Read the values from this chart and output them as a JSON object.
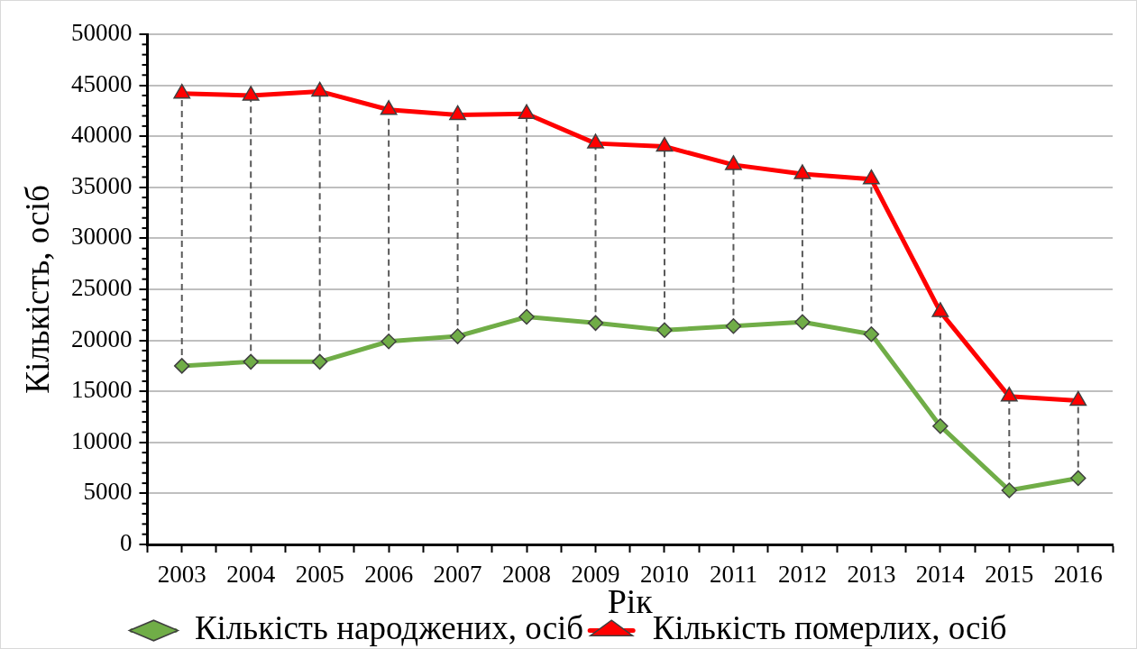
{
  "chart_data": {
    "type": "line",
    "xlabel": "Рік",
    "ylabel": "Кількість, осіб",
    "x": [
      2003,
      2004,
      2005,
      2006,
      2007,
      2008,
      2009,
      2010,
      2011,
      2012,
      2013,
      2014,
      2015,
      2016
    ],
    "series": [
      {
        "name": "Кількість народжених, осіб",
        "color": "#70ad47",
        "marker": "diamond",
        "line_style": "solid",
        "values": [
          17500,
          17900,
          17900,
          19900,
          20400,
          22300,
          21700,
          21000,
          21400,
          21800,
          20600,
          11600,
          5300,
          6500
        ]
      },
      {
        "name": "Кількість померлих, осіб",
        "color": "#ff0000",
        "marker": "triangle",
        "line_style": "solid",
        "values": [
          44200,
          44000,
          44400,
          42600,
          42100,
          42200,
          39300,
          39000,
          37200,
          36300,
          35800,
          22800,
          14500,
          14100
        ]
      },
      {
        "type": "line",
        "color": "#595959",
        "marker": "none",
        "line_style": "dashed",
        "x": [
          2003,
          2003,
          null,
          2004,
          2004,
          null,
          2005,
          2005,
          null,
          2006,
          2006,
          null,
          2007,
          2007,
          null,
          2008,
          2008,
          null,
          2009,
          2009,
          null,
          2010,
          2010,
          null,
          2011,
          2011,
          null,
          2012,
          2012,
          null,
          2013,
          2013,
          null,
          2014,
          2014,
          null,
          2015,
          2015,
          null,
          2016,
          2016
        ],
        "values": [
          17500,
          44200,
          null,
          17900,
          44000,
          null,
          17900,
          44400,
          null,
          19900,
          42600,
          null,
          20400,
          42100,
          null,
          22300,
          42200,
          null,
          21700,
          39300,
          null,
          21000,
          39000,
          null,
          21400,
          37200,
          null,
          21800,
          36300,
          null,
          20600,
          35800,
          null,
          11600,
          22800,
          null,
          5300,
          14500,
          null,
          6500,
          14100
        ]
      }
    ],
    "xlim": [
      2002.5,
      2016.5
    ],
    "xticks": [
      {
        "value": 2002.5,
        "label": null
      },
      2003,
      {
        "value": 2003.5,
        "label": null
      },
      2004,
      {
        "value": 2004.5,
        "label": null
      },
      2005,
      {
        "value": 2005.5,
        "label": null
      },
      2006,
      {
        "value": 2006.5,
        "label": null
      },
      2007,
      {
        "value": 2007.5,
        "label": null
      },
      2008,
      {
        "value": 2008.5,
        "label": null
      },
      2009,
      {
        "value": 2009.5,
        "label": null
      },
      2010,
      {
        "value": 2010.5,
        "label": null
      },
      2011,
      {
        "value": 2011.5,
        "label": null
      },
      2012,
      {
        "value": 2012.5,
        "label": null
      },
      2013,
      {
        "value": 2013.5,
        "label": null
      },
      2014,
      {
        "value": 2014.5,
        "label": null
      },
      2015,
      {
        "value": 2015.5,
        "label": null
      },
      2016,
      {
        "value": 2016.5,
        "label": null
      }
    ],
    "ylim": [
      0,
      50000
    ],
    "yticks": [
      0,
      5000,
      10000,
      15000,
      20000,
      25000,
      30000,
      35000,
      40000,
      45000,
      50000
    ],
    "grid": "y",
    "legend": "bottom"
  }
}
